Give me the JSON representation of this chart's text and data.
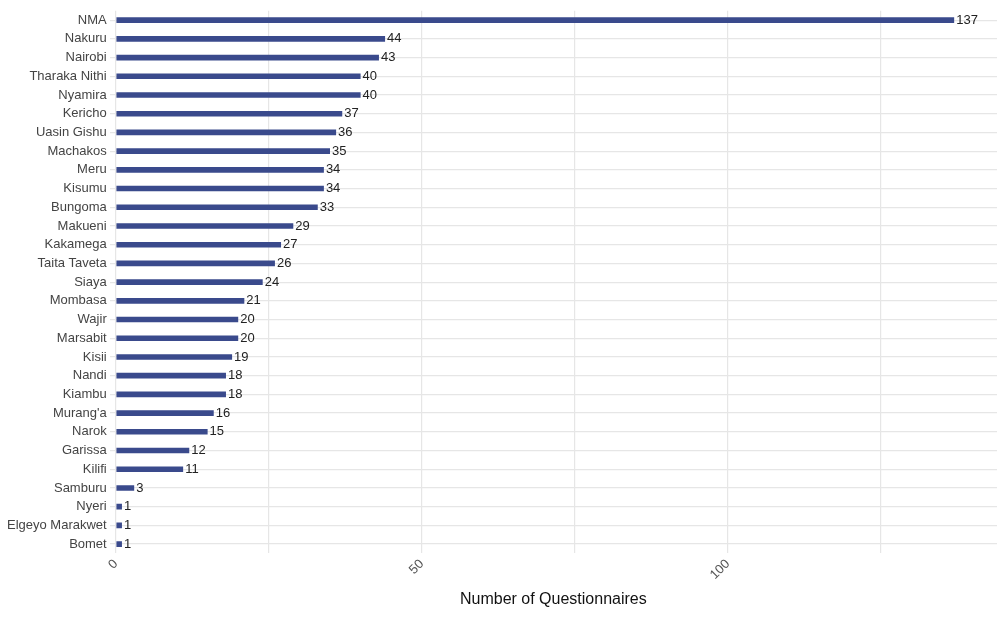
{
  "chart_data": {
    "type": "bar",
    "orientation": "horizontal",
    "xlabel": "Number of Questionnaires",
    "categories": [
      "NMA",
      "Nakuru",
      "Nairobi",
      "Tharaka Nithi",
      "Nyamira",
      "Kericho",
      "Uasin Gishu",
      "Machakos",
      "Meru",
      "Kisumu",
      "Bungoma",
      "Makueni",
      "Kakamega",
      "Taita Taveta",
      "Siaya",
      "Mombasa",
      "Wajir",
      "Marsabit",
      "Kisii",
      "Nandi",
      "Kiambu",
      "Murang'a",
      "Narok",
      "Garissa",
      "Kilifi",
      "Samburu",
      "Nyeri",
      "Elgeyo Marakwet",
      "Bomet"
    ],
    "values": [
      137,
      44,
      43,
      40,
      40,
      37,
      36,
      35,
      34,
      34,
      33,
      29,
      27,
      26,
      24,
      21,
      20,
      20,
      19,
      18,
      18,
      16,
      15,
      12,
      11,
      3,
      1,
      1,
      1
    ],
    "color": "#3a4a8c",
    "xlim": [
      -1,
      144
    ],
    "xticks": [
      0,
      {
        "value": 25,
        "label": null
      },
      50,
      {
        "value": 75,
        "label": null
      },
      100,
      {
        "value": 125,
        "label": null
      }
    ],
    "grid": true,
    "legend": false,
    "data_labels": true
  }
}
